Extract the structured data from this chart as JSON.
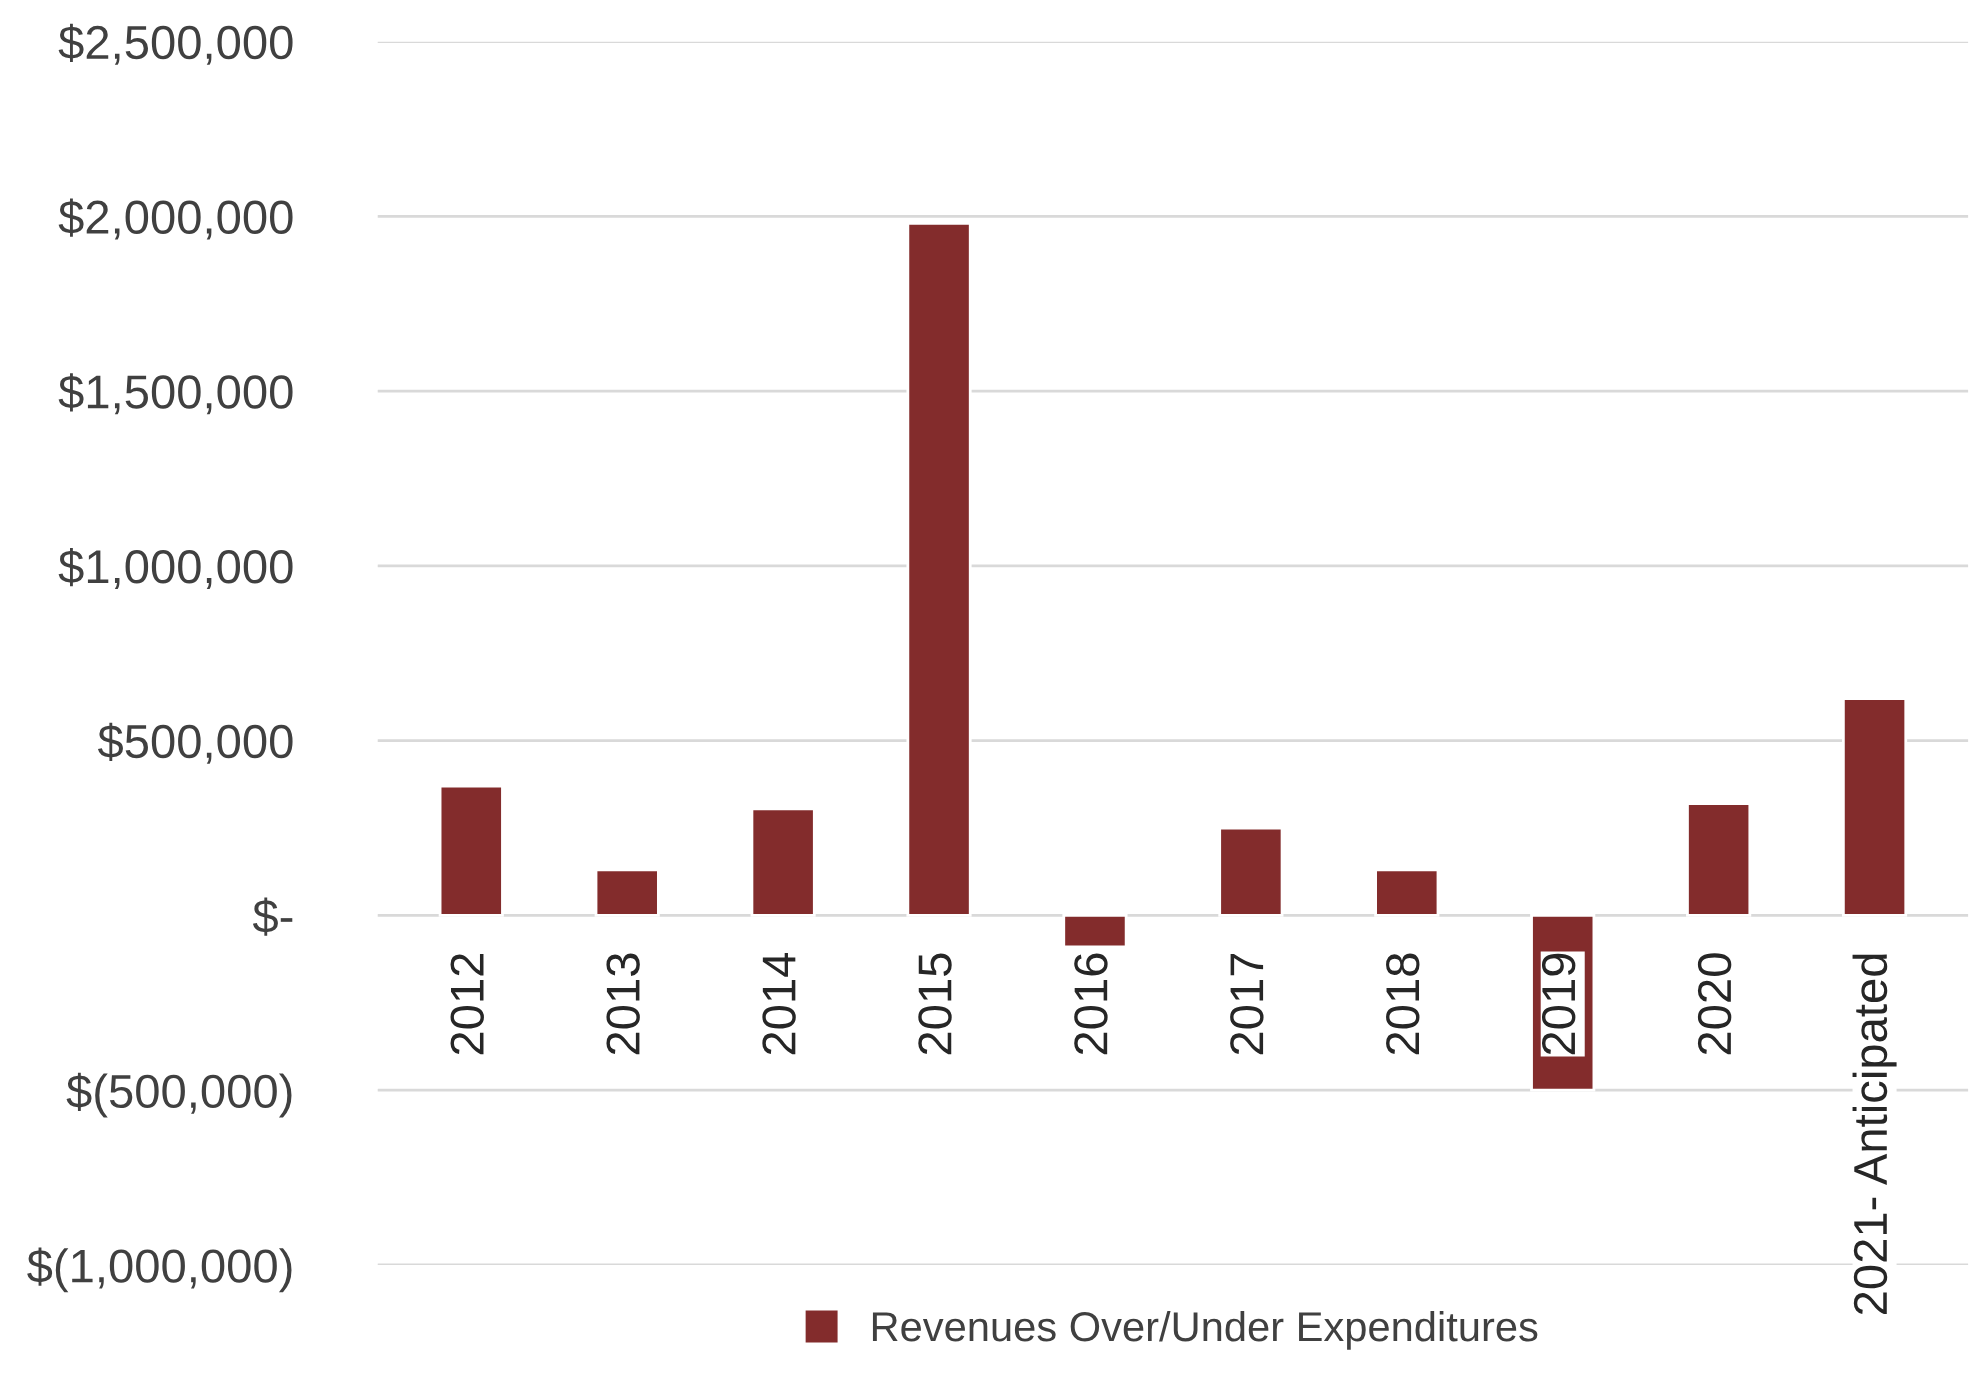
{
  "chart_data": {
    "type": "bar",
    "categories": [
      "2012",
      "2013",
      "2014",
      "2015",
      "2016",
      "2017",
      "2018",
      "2019",
      "2020",
      "2021- Anticipated"
    ],
    "series": [
      {
        "name": "Revenues Over/Under Expenditures",
        "color": "#832c2c",
        "values": [
          370000,
          130000,
          305000,
          1980000,
          -90000,
          250000,
          130000,
          -500000,
          320000,
          620000
        ]
      }
    ],
    "ylim": [
      -1000000,
      2500000
    ],
    "yticks": [
      {
        "value": -1000000,
        "label": "$(1,000,000)"
      },
      {
        "value": -500000,
        "label": "$(500,000)"
      },
      {
        "value": 0,
        "label": "$-"
      },
      {
        "value": 500000,
        "label": "$500,000"
      },
      {
        "value": 1000000,
        "label": "$1,000,000"
      },
      {
        "value": 1500000,
        "label": "$1,500,000"
      },
      {
        "value": 2000000,
        "label": "$2,000,000"
      },
      {
        "value": 2500000,
        "label": "$2,500,000"
      }
    ],
    "grid": "y",
    "legend": "bottom"
  }
}
